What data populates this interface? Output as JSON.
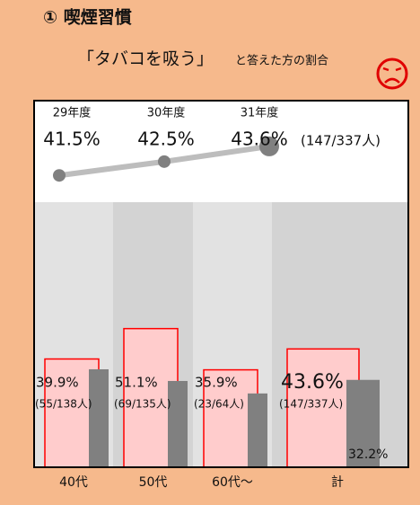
{
  "header": {
    "title": "① 喫煙習慣",
    "subtitle_quote": "「タバコを吸う」",
    "subtitle_rest": "と答えた方の割合"
  },
  "chart_data": [
    {
      "type": "line",
      "categories": [
        "29年度",
        "30年度",
        "31年度"
      ],
      "values": [
        41.5,
        42.5,
        43.6
      ],
      "value_labels": [
        "41.5%",
        "42.5%",
        "43.6%"
      ],
      "annotation": "(147/337人)",
      "color": "#bdbdbd",
      "point_color": "#808080",
      "ylim": [
        39.5,
        46
      ]
    },
    {
      "type": "bar",
      "categories": [
        "40代",
        "50代",
        "60代～",
        "計"
      ],
      "ylim": [
        0,
        100
      ],
      "series": [
        {
          "color": "#ffcccc",
          "stroke": "#ff0000",
          "values": [
            39.9,
            51.1,
            35.9,
            43.6
          ],
          "value_labels": [
            "39.9%",
            "51.1%",
            "35.9%",
            "43.6%"
          ],
          "annotations": [
            "(55/138人)",
            "(69/135人)",
            "(23/64人)",
            "(147/337人)"
          ]
        },
        {
          "color": "#808080",
          "values": [
            36.1,
            31.8,
            27.2,
            32.2
          ],
          "value_labels": [
            null,
            null,
            null,
            "32.2%"
          ]
        }
      ]
    }
  ]
}
